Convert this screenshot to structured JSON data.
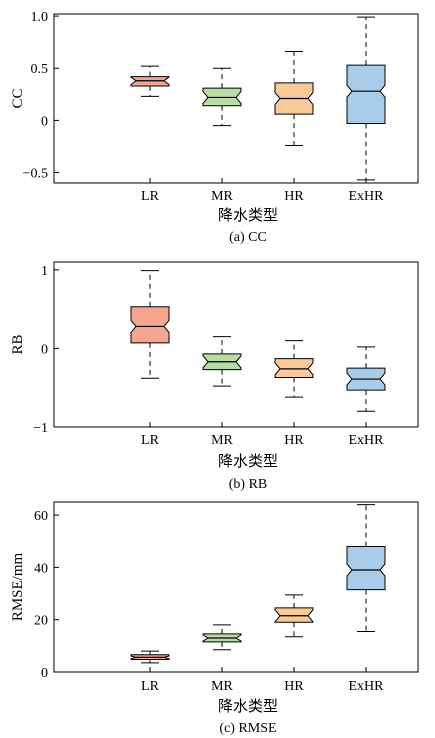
{
  "chart_data": [
    {
      "type": "box",
      "caption": "(a) CC",
      "xlabel": "降水类型",
      "ylabel": "CC",
      "categories": [
        "LR",
        "MR",
        "HR",
        "ExHR"
      ],
      "ylim": [
        -0.6,
        1.02
      ],
      "yticks": [
        -0.5,
        0,
        0.5,
        1.0
      ],
      "ytick_labels": [
        "−0.5",
        "0",
        "0.5",
        "1.0"
      ],
      "colors": [
        "#f4a58f",
        "#b9dca5",
        "#f9c99a",
        "#a9cde8"
      ],
      "boxes": [
        {
          "category": "LR",
          "whisker_low": 0.23,
          "q1": 0.33,
          "median": 0.38,
          "q3": 0.42,
          "whisker_high": 0.52
        },
        {
          "category": "MR",
          "whisker_low": -0.05,
          "q1": 0.14,
          "median": 0.22,
          "q3": 0.31,
          "whisker_high": 0.5
        },
        {
          "category": "HR",
          "whisker_low": -0.24,
          "q1": 0.06,
          "median": 0.21,
          "q3": 0.36,
          "whisker_high": 0.66
        },
        {
          "category": "ExHR",
          "whisker_low": -0.57,
          "q1": -0.03,
          "median": 0.28,
          "q3": 0.53,
          "whisker_high": 0.99
        }
      ]
    },
    {
      "type": "box",
      "caption": "(b) RB",
      "xlabel": "降水类型",
      "ylabel": "RB",
      "categories": [
        "LR",
        "MR",
        "HR",
        "ExHR"
      ],
      "ylim": [
        -1.0,
        1.1
      ],
      "yticks": [
        -1,
        0,
        1
      ],
      "ytick_labels": [
        "−1",
        "0",
        "1"
      ],
      "colors": [
        "#f4a58f",
        "#b9dca5",
        "#f9c99a",
        "#a9cde8"
      ],
      "boxes": [
        {
          "category": "LR",
          "whisker_low": -0.38,
          "q1": 0.07,
          "median": 0.28,
          "q3": 0.53,
          "whisker_high": 0.99
        },
        {
          "category": "MR",
          "whisker_low": -0.48,
          "q1": -0.27,
          "median": -0.17,
          "q3": -0.07,
          "whisker_high": 0.15
        },
        {
          "category": "HR",
          "whisker_low": -0.62,
          "q1": -0.37,
          "median": -0.26,
          "q3": -0.13,
          "whisker_high": 0.1
        },
        {
          "category": "ExHR",
          "whisker_low": -0.8,
          "q1": -0.53,
          "median": -0.39,
          "q3": -0.25,
          "whisker_high": 0.02
        }
      ]
    },
    {
      "type": "box",
      "caption": "(c) RMSE",
      "xlabel": "降水类型",
      "ylabel": "RMSE/mm",
      "categories": [
        "LR",
        "MR",
        "HR",
        "ExHR"
      ],
      "ylim": [
        0,
        65
      ],
      "yticks": [
        0,
        20,
        40,
        60
      ],
      "ytick_labels": [
        "0",
        "20",
        "40",
        "60"
      ],
      "colors": [
        "#f4a58f",
        "#b9dca5",
        "#f9c99a",
        "#a9cde8"
      ],
      "boxes": [
        {
          "category": "LR",
          "whisker_low": 3.5,
          "q1": 4.8,
          "median": 5.6,
          "q3": 6.6,
          "whisker_high": 8.0
        },
        {
          "category": "MR",
          "whisker_low": 8.5,
          "q1": 11.5,
          "median": 13.0,
          "q3": 14.6,
          "whisker_high": 18.0
        },
        {
          "category": "HR",
          "whisker_low": 13.5,
          "q1": 19.0,
          "median": 21.5,
          "q3": 24.5,
          "whisker_high": 29.5
        },
        {
          "category": "ExHR",
          "whisker_low": 15.5,
          "q1": 31.5,
          "median": 39.0,
          "q3": 48.0,
          "whisker_high": 64.0
        }
      ]
    }
  ]
}
